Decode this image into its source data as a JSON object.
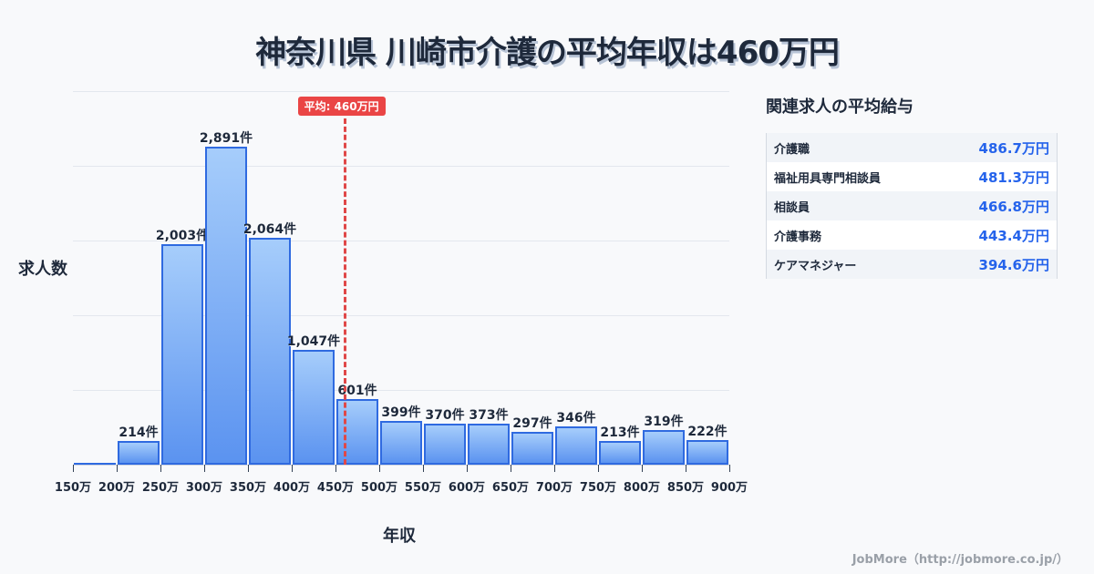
{
  "title": "神奈川県 川崎市介護の平均年収は460万円",
  "chart_data": {
    "type": "bar",
    "title": "神奈川県 川崎市介護の平均年収は460万円",
    "xlabel": "年収",
    "ylabel": "求人数",
    "categories": [
      "150-200万",
      "200-250万",
      "250-300万",
      "300-350万",
      "350-400万",
      "400-450万",
      "450-500万",
      "500-550万",
      "550-600万",
      "600-650万",
      "650-700万",
      "700-750万",
      "750-800万",
      "800-850万",
      "850-900万"
    ],
    "values": [
      0,
      214,
      2003,
      2891,
      2064,
      1047,
      601,
      399,
      370,
      373,
      297,
      346,
      213,
      319,
      222
    ],
    "value_labels": [
      "",
      "214件",
      "2,003件",
      "2,891件",
      "2,064件",
      "1,047件",
      "601件",
      "399件",
      "370件",
      "373件",
      "297件",
      "346件",
      "213件",
      "319件",
      "222件"
    ],
    "x_ticks": [
      "150万",
      "200万",
      "250万",
      "300万",
      "350万",
      "400万",
      "450万",
      "500万",
      "550万",
      "600万",
      "650万",
      "700万",
      "750万",
      "800万",
      "850万",
      "900万"
    ],
    "ylim": [
      0,
      3400
    ],
    "grid": true,
    "average": {
      "value": 460,
      "label": "平均: 460万円",
      "color": "#e04848"
    },
    "bar_color": "#5b93f0",
    "bar_border_color": "#2f6ae0"
  },
  "sidebar": {
    "title": "関連求人の平均給与",
    "rows": [
      {
        "name": "介護職",
        "value": "486.7万円"
      },
      {
        "name": "福祉用具専門相談員",
        "value": "481.3万円"
      },
      {
        "name": "相談員",
        "value": "466.8万円"
      },
      {
        "name": "介護事務",
        "value": "443.4万円"
      },
      {
        "name": "ケアマネジャー",
        "value": "394.6万円"
      }
    ]
  },
  "footer": "JobMore（http://jobmore.co.jp/）"
}
